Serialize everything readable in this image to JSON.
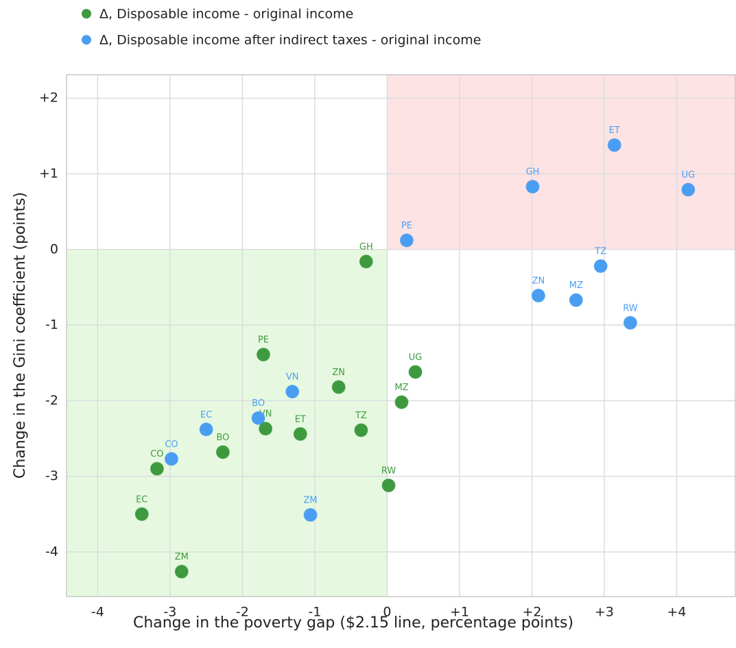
{
  "chart_data": {
    "type": "scatter",
    "x_label": "Change in the poverty gap ($2.15 line, percentage points)",
    "y_label": "Change in the Gini coefficient (points)",
    "xlim": [
      -4.43,
      4.82
    ],
    "ylim": [
      -4.59,
      2.31
    ],
    "xticks": [
      -4,
      -3,
      -2,
      -1,
      0,
      {
        "value": 1,
        "label": "+1"
      },
      {
        "value": 2,
        "label": "+2"
      },
      {
        "value": 3,
        "label": "+3"
      },
      {
        "value": 4,
        "label": "+4"
      }
    ],
    "yticks": [
      {
        "value": 2,
        "label": "+2"
      },
      {
        "value": 1,
        "label": "+1"
      },
      0,
      -1,
      -2,
      -3,
      -4
    ],
    "grid": true,
    "series": [
      {
        "name": "Δ, Disposable income - original income",
        "color": "#3f9a3f",
        "labels": [
          "GH",
          "PE",
          "UG",
          "ZN",
          "MZ",
          "VN",
          "ET",
          "TZ",
          "BO",
          "CO",
          "RW",
          "EC",
          "ZM"
        ],
        "x": [
          -0.29,
          -1.71,
          0.39,
          -0.67,
          0.2,
          -1.68,
          -1.2,
          -0.36,
          -2.27,
          -3.18,
          0.02,
          -3.39,
          -2.84
        ],
        "values": [
          -0.16,
          -1.39,
          -1.62,
          -1.82,
          -2.02,
          -2.37,
          -2.44,
          -2.39,
          -2.68,
          -2.9,
          -3.12,
          -3.5,
          -4.26
        ]
      },
      {
        "name": "Δ, Disposable income after indirect taxes - original income",
        "color": "#4a9ef2",
        "labels": [
          "ET",
          "GH",
          "UG",
          "PE",
          "TZ",
          "ZN",
          "MZ",
          "RW",
          "VN",
          "BO",
          "EC",
          "CO",
          "ZM"
        ],
        "x": [
          3.14,
          2.01,
          4.16,
          0.27,
          2.95,
          2.09,
          2.61,
          3.36,
          -1.31,
          -1.78,
          -2.5,
          -2.98,
          -1.06
        ],
        "values": [
          1.38,
          0.83,
          0.79,
          0.12,
          -0.22,
          -0.61,
          -0.67,
          -0.97,
          -1.88,
          -2.23,
          -2.38,
          -2.77,
          -3.51
        ]
      }
    ]
  }
}
